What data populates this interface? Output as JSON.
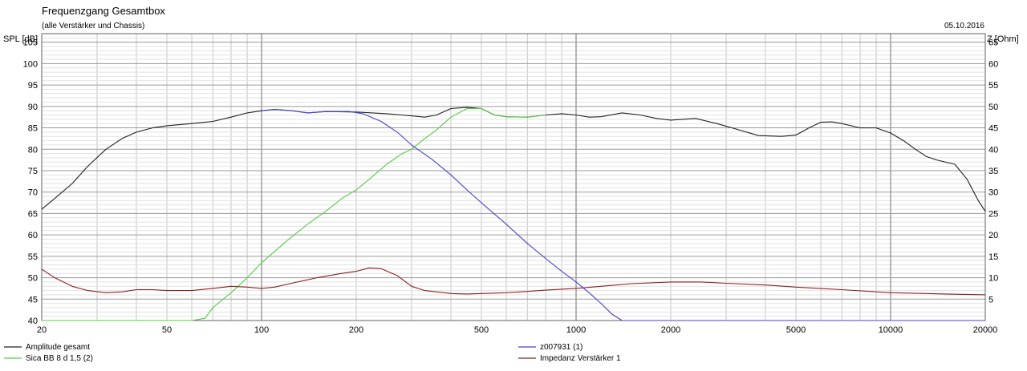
{
  "chart_data": {
    "type": "line",
    "title": "Frequenzgang Gesamtbox",
    "subtitle": "(alle Verstärker und Chassis)",
    "date": "05.10.2016",
    "ylabel_left": "SPL [dB]",
    "ylabel_right": "Z [Ohm]",
    "xscale": "log",
    "xlim": [
      20,
      20000
    ],
    "ylim_left": [
      40,
      107
    ],
    "ylim_right": [
      0,
      67
    ],
    "grid": true,
    "legend_position": "bottom",
    "x_tick_labels": [
      "20",
      "50",
      "100",
      "200",
      "500",
      "1000",
      "2000",
      "5000",
      "10000",
      "20000"
    ],
    "y_left_tick_labels": [
      "40",
      "45",
      "50",
      "55",
      "60",
      "65",
      "70",
      "75",
      "80",
      "85",
      "90",
      "95",
      "100",
      "105"
    ],
    "y_right_tick_labels": [
      "5",
      "10",
      "15",
      "20",
      "25",
      "30",
      "35",
      "40",
      "45",
      "50",
      "55",
      "60",
      "65"
    ],
    "series": [
      {
        "name": "Amplitude gesamt",
        "axis": "left",
        "color": "#202020",
        "points": [
          [
            20,
            66
          ],
          [
            22,
            68.5
          ],
          [
            25,
            72
          ],
          [
            28,
            76
          ],
          [
            32,
            80
          ],
          [
            36,
            82.5
          ],
          [
            40,
            84
          ],
          [
            45,
            85
          ],
          [
            50,
            85.5
          ],
          [
            60,
            86
          ],
          [
            70,
            86.5
          ],
          [
            80,
            87.5
          ],
          [
            90,
            88.5
          ],
          [
            100,
            89
          ],
          [
            110,
            89.3
          ],
          [
            125,
            89
          ],
          [
            140,
            88.5
          ],
          [
            160,
            88.8
          ],
          [
            200,
            88.7
          ],
          [
            250,
            88.3
          ],
          [
            300,
            87.8
          ],
          [
            330,
            87.5
          ],
          [
            360,
            88
          ],
          [
            400,
            89.5
          ],
          [
            450,
            89.8
          ],
          [
            500,
            89.5
          ],
          [
            550,
            88
          ],
          [
            600,
            87.6
          ],
          [
            700,
            87.5
          ],
          [
            800,
            88
          ],
          [
            900,
            88.3
          ],
          [
            1000,
            88
          ],
          [
            1100,
            87.5
          ],
          [
            1200,
            87.6
          ],
          [
            1400,
            88.5
          ],
          [
            1600,
            88
          ],
          [
            1800,
            87.2
          ],
          [
            2000,
            86.8
          ],
          [
            2400,
            87.2
          ],
          [
            2800,
            86
          ],
          [
            3200,
            84.8
          ],
          [
            3800,
            83.2
          ],
          [
            4500,
            83
          ],
          [
            5000,
            83.3
          ],
          [
            5500,
            85
          ],
          [
            6000,
            86.3
          ],
          [
            6500,
            86.4
          ],
          [
            7000,
            86
          ],
          [
            8000,
            85
          ],
          [
            9000,
            85
          ],
          [
            10000,
            83.8
          ],
          [
            11000,
            82
          ],
          [
            12000,
            80
          ],
          [
            13000,
            78.3
          ],
          [
            14000,
            77.5
          ],
          [
            16000,
            76.5
          ],
          [
            17500,
            73
          ],
          [
            19000,
            68
          ],
          [
            20000,
            65.5
          ]
        ]
      },
      {
        "name": "Sica BB 8 d 1,5 (2)",
        "axis": "left",
        "color": "#55cc44",
        "points": [
          [
            20,
            40
          ],
          [
            60,
            40
          ],
          [
            66,
            40.5
          ],
          [
            70,
            43
          ],
          [
            80,
            46.5
          ],
          [
            90,
            50
          ],
          [
            100,
            53.5
          ],
          [
            120,
            58.5
          ],
          [
            140,
            62.5
          ],
          [
            160,
            65.5
          ],
          [
            180,
            68.5
          ],
          [
            200,
            70.5
          ],
          [
            220,
            73
          ],
          [
            250,
            76.5
          ],
          [
            280,
            79
          ],
          [
            300,
            80
          ],
          [
            330,
            82.5
          ],
          [
            360,
            84.5
          ],
          [
            400,
            87.5
          ],
          [
            450,
            89.5
          ],
          [
            500,
            89.5
          ],
          [
            550,
            88
          ],
          [
            600,
            87.6
          ],
          [
            700,
            87.5
          ],
          [
            800,
            88
          ]
        ]
      },
      {
        "name": "z007931 (1)",
        "axis": "left",
        "color": "#4444cc",
        "points": [
          [
            100,
            89
          ],
          [
            110,
            89.3
          ],
          [
            125,
            89
          ],
          [
            140,
            88.5
          ],
          [
            160,
            88.8
          ],
          [
            190,
            88.8
          ],
          [
            210,
            88.3
          ],
          [
            240,
            86.5
          ],
          [
            270,
            84
          ],
          [
            300,
            81
          ],
          [
            350,
            77.5
          ],
          [
            400,
            74
          ],
          [
            450,
            70.5
          ],
          [
            500,
            67.5
          ],
          [
            600,
            62.5
          ],
          [
            700,
            58
          ],
          [
            800,
            54.5
          ],
          [
            900,
            51.5
          ],
          [
            1000,
            49
          ],
          [
            1100,
            46.5
          ],
          [
            1200,
            44
          ],
          [
            1300,
            41.5
          ],
          [
            1400,
            40
          ],
          [
            20000,
            40
          ]
        ]
      },
      {
        "name": "Impedanz Verstärker 1",
        "axis": "right",
        "color": "#8b2020",
        "points": [
          [
            20,
            12
          ],
          [
            22,
            10
          ],
          [
            25,
            8
          ],
          [
            28,
            7
          ],
          [
            32,
            6.5
          ],
          [
            36,
            6.7
          ],
          [
            40,
            7.2
          ],
          [
            45,
            7.2
          ],
          [
            50,
            7
          ],
          [
            60,
            7
          ],
          [
            70,
            7.5
          ],
          [
            80,
            8
          ],
          [
            90,
            7.8
          ],
          [
            100,
            7.5
          ],
          [
            110,
            7.8
          ],
          [
            130,
            9
          ],
          [
            150,
            10
          ],
          [
            180,
            11
          ],
          [
            200,
            11.5
          ],
          [
            220,
            12.3
          ],
          [
            240,
            12.1
          ],
          [
            270,
            10.5
          ],
          [
            300,
            8
          ],
          [
            330,
            7
          ],
          [
            400,
            6.3
          ],
          [
            450,
            6.2
          ],
          [
            500,
            6.3
          ],
          [
            600,
            6.5
          ],
          [
            700,
            6.8
          ],
          [
            800,
            7.1
          ],
          [
            1000,
            7.5
          ],
          [
            1200,
            8
          ],
          [
            1500,
            8.6
          ],
          [
            2000,
            9
          ],
          [
            2500,
            9
          ],
          [
            3000,
            8.7
          ],
          [
            4000,
            8.3
          ],
          [
            5000,
            7.8
          ],
          [
            7000,
            7.2
          ],
          [
            10000,
            6.5
          ],
          [
            15000,
            6.2
          ],
          [
            20000,
            6
          ]
        ]
      }
    ]
  }
}
